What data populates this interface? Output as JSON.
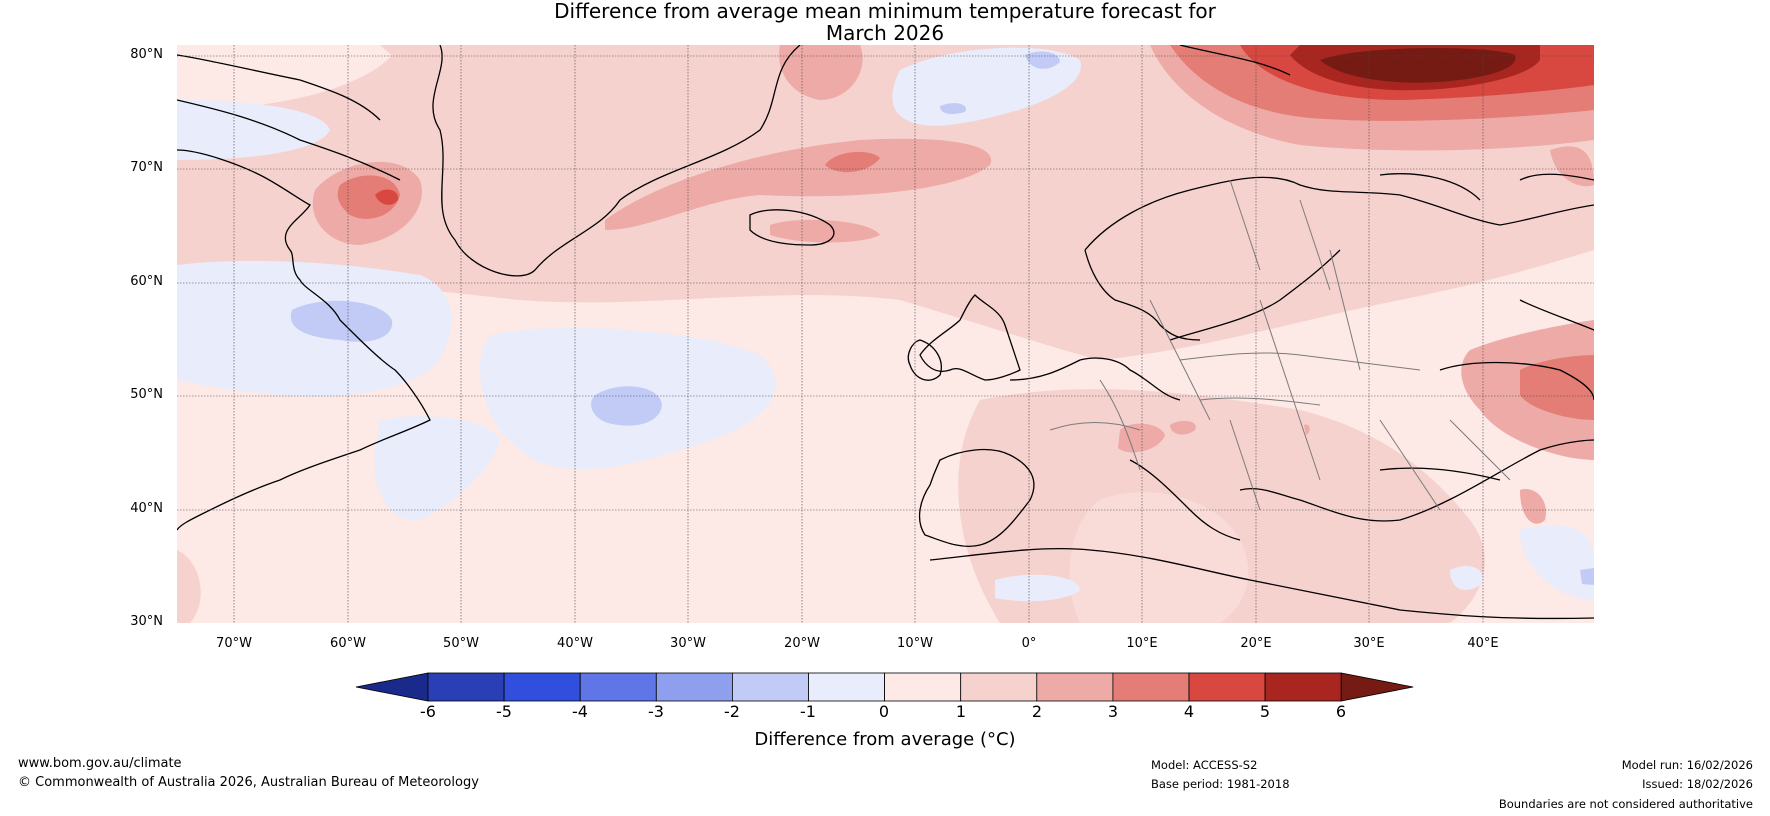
{
  "title": {
    "line1": "Difference from average mean minimum temperature forecast for",
    "line2": "March 2026"
  },
  "map": {
    "latitude_labels": [
      "80°N",
      "70°N",
      "60°N",
      "50°N",
      "40°N",
      "30°N"
    ],
    "longitude_labels": [
      "70°W",
      "60°W",
      "50°W",
      "40°W",
      "30°W",
      "20°W",
      "10°W",
      "0°",
      "10°E",
      "20°E",
      "30°E",
      "40°E"
    ],
    "extent": {
      "lon_min": -75,
      "lon_max": 50,
      "lat_min": 30,
      "lat_max": 81
    }
  },
  "colorbar": {
    "tick_labels": [
      "-6",
      "-5",
      "-4",
      "-3",
      "-2",
      "-1",
      "0",
      "1",
      "2",
      "3",
      "4",
      "5",
      "6"
    ],
    "colors": [
      "#1a2a8a",
      "#2a3fb5",
      "#2f4fdc",
      "#5f76e6",
      "#8e9fee",
      "#c2cbf5",
      "#e8ecfb",
      "#fde9e6",
      "#f6d2cf",
      "#eeaaa6",
      "#e47d76",
      "#d84840",
      "#a92620",
      "#761b14"
    ],
    "label": "Difference from average (°C)"
  },
  "footer": {
    "url": "www.bom.gov.au/climate",
    "copyright": "© Commonwealth of Australia 2026, Australian Bureau of Meteorology",
    "model": "Model: ACCESS-S2",
    "base_period": "Base period: 1981-2018",
    "model_run": "Model run: 16/02/2026",
    "issued": "Issued: 18/02/2026",
    "disclaimer": "Boundaries are not considered authoritative"
  }
}
